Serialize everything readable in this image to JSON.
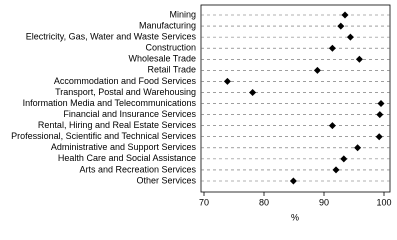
{
  "chart_data": {
    "type": "dot",
    "orientation": "horizontal",
    "categories": [
      "Mining",
      "Manufacturing",
      "Electricity, Gas, Water and Waste Services",
      "Construction",
      "Wholesale Trade",
      "Retail Trade",
      "Accommodation and Food Services",
      "Transport, Postal and Warehousing",
      "Information Media and Telecommunications",
      "Financial and Insurance Services",
      "Rental, Hiring and Real Estate Services",
      "Professional, Scientific and Technical Services",
      "Administrative and Support Services",
      "Health Care and Social Assistance",
      "Arts and Recreation Services",
      "Other Services"
    ],
    "values": [
      93.5,
      92.8,
      94.4,
      91.4,
      95.9,
      88.9,
      73.9,
      78.1,
      99.5,
      99.3,
      91.4,
      99.2,
      95.6,
      93.3,
      92.0,
      84.9
    ],
    "color": "#000000",
    "x_label": "%",
    "xlim": [
      69.5,
      101
    ],
    "xticks": [
      70,
      80,
      90,
      100
    ],
    "grid": true
  }
}
